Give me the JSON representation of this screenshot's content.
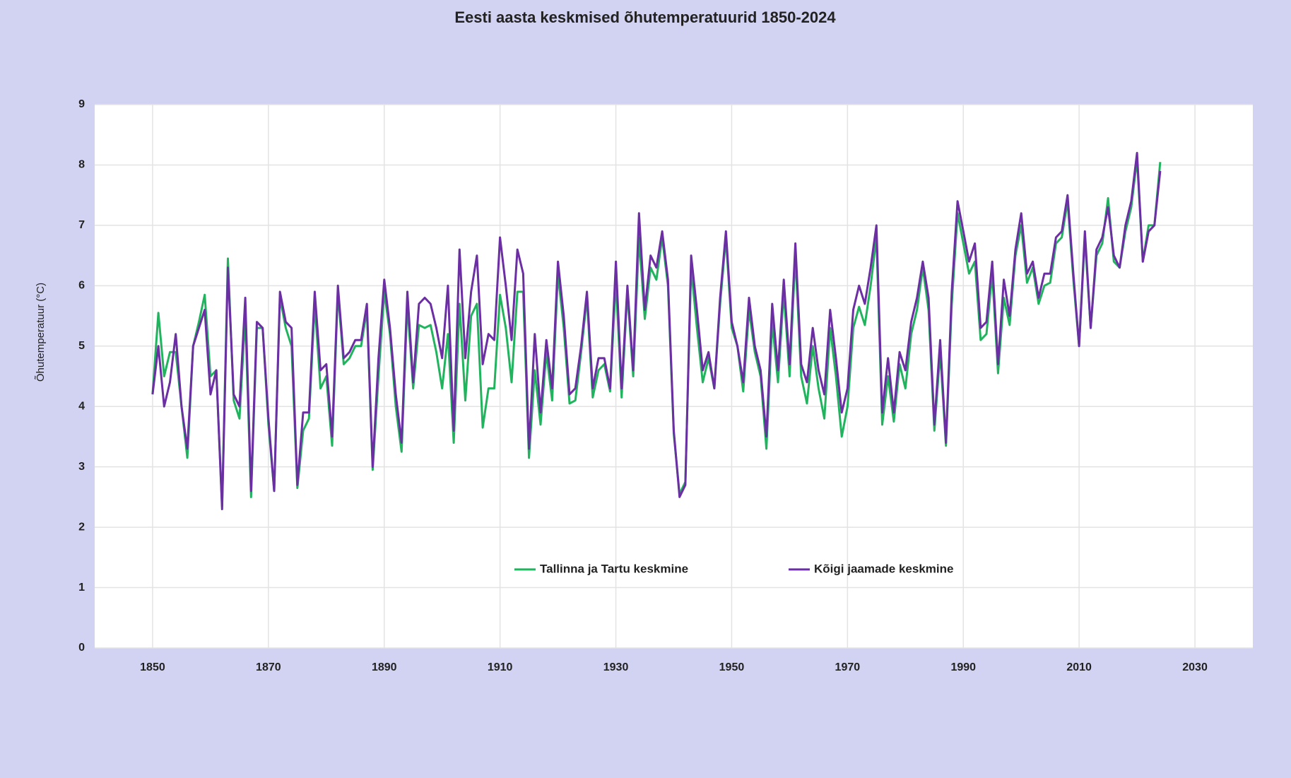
{
  "chart_data": {
    "type": "line",
    "title": "Eesti aasta keskmised õhutemperatuurid 1850-2024",
    "y_label": "Õhutemperatuur (°C)",
    "x": [
      1850,
      1851,
      1852,
      1853,
      1854,
      1855,
      1856,
      1857,
      1858,
      1859,
      1860,
      1861,
      1862,
      1863,
      1864,
      1865,
      1866,
      1867,
      1868,
      1869,
      1870,
      1871,
      1872,
      1873,
      1874,
      1875,
      1876,
      1877,
      1878,
      1879,
      1880,
      1881,
      1882,
      1883,
      1884,
      1885,
      1886,
      1887,
      1888,
      1889,
      1890,
      1891,
      1892,
      1893,
      1894,
      1895,
      1896,
      1897,
      1898,
      1899,
      1900,
      1901,
      1902,
      1903,
      1904,
      1905,
      1906,
      1907,
      1908,
      1909,
      1910,
      1911,
      1912,
      1913,
      1914,
      1915,
      1916,
      1917,
      1918,
      1919,
      1920,
      1921,
      1922,
      1923,
      1924,
      1925,
      1926,
      1927,
      1928,
      1929,
      1930,
      1931,
      1932,
      1933,
      1934,
      1935,
      1936,
      1937,
      1938,
      1939,
      1940,
      1941,
      1942,
      1943,
      1944,
      1945,
      1946,
      1947,
      1948,
      1949,
      1950,
      1951,
      1952,
      1953,
      1954,
      1955,
      1956,
      1957,
      1958,
      1959,
      1960,
      1961,
      1962,
      1963,
      1964,
      1965,
      1966,
      1967,
      1968,
      1969,
      1970,
      1971,
      1972,
      1973,
      1974,
      1975,
      1976,
      1977,
      1978,
      1979,
      1980,
      1981,
      1982,
      1983,
      1984,
      1985,
      1986,
      1987,
      1988,
      1989,
      1990,
      1991,
      1992,
      1993,
      1994,
      1995,
      1996,
      1997,
      1998,
      1999,
      2000,
      2001,
      2002,
      2003,
      2004,
      2005,
      2006,
      2007,
      2008,
      2009,
      2010,
      2011,
      2012,
      2013,
      2014,
      2015,
      2016,
      2017,
      2018,
      2019,
      2020,
      2021,
      2022,
      2023,
      2024
    ],
    "series": [
      {
        "name": "Tallinna ja Tartu keskmine",
        "color": "#22b35e",
        "values": [
          4.2,
          5.55,
          4.5,
          4.9,
          4.9,
          4.0,
          3.15,
          5.0,
          5.4,
          5.85,
          4.5,
          4.6,
          2.35,
          6.45,
          4.1,
          3.8,
          5.5,
          2.5,
          5.3,
          5.3,
          3.7,
          2.6,
          5.8,
          5.3,
          5.0,
          2.65,
          3.6,
          3.8,
          5.7,
          4.3,
          4.5,
          3.35,
          5.9,
          4.7,
          4.8,
          5.0,
          5.0,
          5.6,
          2.95,
          4.5,
          5.9,
          5.2,
          4.0,
          3.25,
          5.7,
          4.3,
          5.35,
          5.3,
          5.35,
          4.9,
          4.3,
          5.2,
          3.4,
          5.7,
          4.1,
          5.5,
          5.7,
          3.65,
          4.3,
          4.3,
          5.85,
          5.3,
          4.4,
          5.9,
          5.9,
          3.15,
          4.6,
          3.7,
          4.9,
          4.1,
          6.2,
          5.3,
          4.05,
          4.1,
          4.9,
          5.8,
          4.15,
          4.6,
          4.7,
          4.25,
          6.1,
          4.15,
          5.9,
          4.5,
          6.8,
          5.45,
          6.3,
          6.1,
          6.8,
          6.0,
          3.55,
          2.55,
          2.75,
          6.3,
          5.3,
          4.4,
          4.8,
          4.3,
          5.7,
          6.8,
          5.3,
          5.0,
          4.25,
          5.6,
          4.9,
          4.5,
          3.3,
          5.4,
          4.4,
          5.9,
          4.5,
          6.5,
          4.5,
          4.05,
          5.0,
          4.3,
          3.8,
          5.3,
          4.5,
          3.5,
          4.0,
          5.3,
          5.65,
          5.35,
          6.0,
          6.8,
          3.7,
          4.5,
          3.75,
          4.7,
          4.3,
          5.2,
          5.6,
          6.3,
          5.6,
          3.6,
          4.9,
          3.35,
          5.7,
          7.2,
          6.7,
          6.2,
          6.4,
          5.1,
          5.2,
          6.2,
          4.55,
          5.8,
          5.35,
          6.5,
          7.0,
          6.05,
          6.3,
          5.7,
          6.0,
          6.05,
          6.7,
          6.8,
          7.4,
          6.1,
          5.0,
          6.8,
          5.3,
          6.5,
          6.7,
          7.45,
          6.4,
          6.3,
          6.9,
          7.3,
          8.1,
          6.4,
          7.0,
          7.0,
          8.05
        ]
      },
      {
        "name": "Kõigi jaamade keskmine",
        "color": "#6b2ea3",
        "values": [
          4.2,
          5.0,
          4.0,
          4.4,
          5.2,
          4.0,
          3.3,
          5.0,
          5.3,
          5.6,
          4.2,
          4.6,
          2.3,
          6.3,
          4.2,
          4.0,
          5.8,
          2.6,
          5.4,
          5.3,
          3.8,
          2.6,
          5.9,
          5.4,
          5.3,
          2.7,
          3.9,
          3.9,
          5.9,
          4.6,
          4.7,
          3.5,
          6.0,
          4.8,
          4.9,
          5.1,
          5.1,
          5.7,
          3.0,
          4.8,
          6.1,
          5.3,
          4.2,
          3.4,
          5.9,
          4.4,
          5.7,
          5.8,
          5.7,
          5.3,
          4.8,
          6.0,
          3.6,
          6.6,
          4.8,
          5.9,
          6.5,
          4.7,
          5.2,
          5.1,
          6.8,
          6.0,
          5.1,
          6.6,
          6.2,
          3.3,
          5.2,
          3.9,
          5.1,
          4.3,
          6.4,
          5.5,
          4.2,
          4.3,
          5.0,
          5.9,
          4.3,
          4.8,
          4.8,
          4.3,
          6.4,
          4.3,
          6.0,
          4.6,
          7.2,
          5.6,
          6.5,
          6.3,
          6.9,
          6.1,
          3.6,
          2.5,
          2.7,
          6.5,
          5.6,
          4.6,
          4.9,
          4.3,
          5.8,
          6.9,
          5.4,
          5.0,
          4.4,
          5.8,
          5.0,
          4.6,
          3.5,
          5.7,
          4.6,
          6.1,
          4.7,
          6.7,
          4.7,
          4.4,
          5.3,
          4.6,
          4.2,
          5.6,
          4.8,
          3.9,
          4.3,
          5.6,
          6.0,
          5.7,
          6.3,
          7.0,
          3.9,
          4.8,
          3.9,
          4.9,
          4.6,
          5.4,
          5.8,
          6.4,
          5.8,
          3.7,
          5.1,
          3.4,
          5.9,
          7.4,
          6.9,
          6.4,
          6.7,
          5.3,
          5.4,
          6.4,
          4.7,
          6.1,
          5.5,
          6.6,
          7.2,
          6.2,
          6.4,
          5.8,
          6.2,
          6.2,
          6.8,
          6.9,
          7.5,
          6.2,
          5.0,
          6.9,
          5.3,
          6.6,
          6.8,
          7.3,
          6.5,
          6.3,
          7.0,
          7.4,
          8.2,
          6.4,
          6.9,
          7.0,
          7.9
        ]
      }
    ],
    "xlim": [
      1840,
      2040
    ],
    "xticks": [
      1850,
      1870,
      1890,
      1910,
      1930,
      1950,
      1970,
      1990,
      2010,
      2030
    ],
    "ylim": [
      0,
      9
    ],
    "yticks": [
      0,
      1,
      2,
      3,
      4,
      5,
      6,
      7,
      8,
      9
    ],
    "grid": true,
    "legend": "bottom"
  }
}
